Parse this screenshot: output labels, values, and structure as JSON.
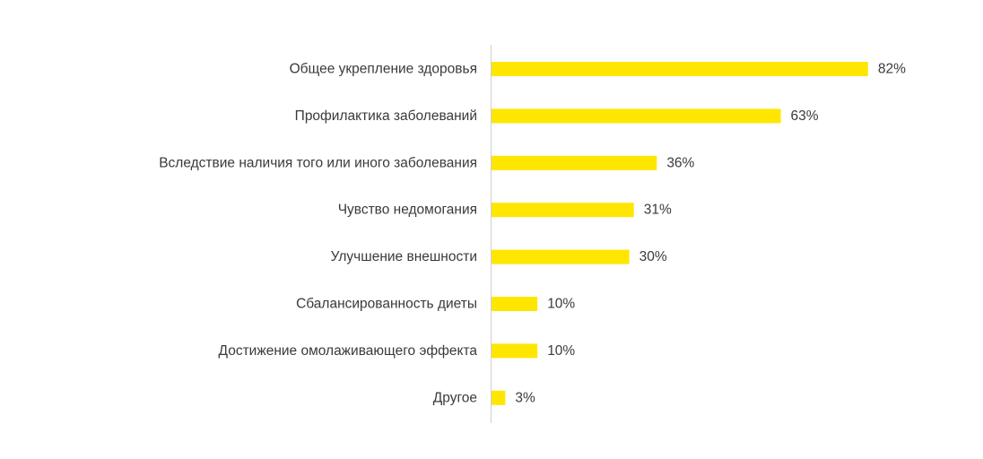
{
  "chart_data": {
    "type": "bar",
    "orientation": "horizontal",
    "categories": [
      "Общее укрепление здоровья",
      "Профилактика заболеваний",
      "Вследствие наличия того или иного заболевания",
      "Чувство недомогания",
      "Улучшение внешности",
      "Сбалансированность диеты",
      "Достижение омолаживающего эффекта",
      "Другое"
    ],
    "values": [
      82,
      63,
      36,
      31,
      30,
      10,
      10,
      3
    ],
    "value_labels": [
      "82%",
      "63%",
      "36%",
      "31%",
      "30%",
      "10%",
      "10%",
      "3%"
    ],
    "unit": "%",
    "xlim": [
      0,
      100
    ],
    "grid": false,
    "bar_color": "#FFE600",
    "axis_color": "#d0d0d0",
    "text_color": "#3a3a3a"
  }
}
